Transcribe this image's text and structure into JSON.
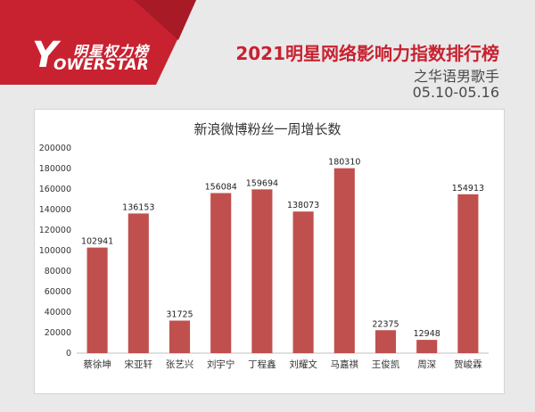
{
  "header": {
    "logo_cn": "明星权力榜",
    "logo_en": "OWERSTAR",
    "logo_letter": "Y",
    "title": "2021明星网络影响力指数排行榜",
    "subtitle": "之华语男歌手",
    "date_range": "05.10-05.16"
  },
  "colors": {
    "brand_red": "#c82230",
    "bar": "#c0504d"
  },
  "chart_data": {
    "type": "bar",
    "title": "新浪微博粉丝一周增长数",
    "categories": [
      "蔡徐坤",
      "宋亚轩",
      "张艺兴",
      "刘宇宁",
      "丁程鑫",
      "刘耀文",
      "马嘉祺",
      "王俊凯",
      "周深",
      "贺峻霖"
    ],
    "values": [
      102941,
      136153,
      31725,
      156084,
      159694,
      138073,
      180310,
      22375,
      12948,
      154913
    ],
    "value_labels": [
      "102941",
      "136153",
      "31725",
      "156084",
      "159694",
      "138073",
      "180310",
      "22375",
      "12948",
      "154913"
    ],
    "ylim": [
      0,
      200000
    ],
    "yticks": [
      0,
      20000,
      40000,
      60000,
      80000,
      100000,
      120000,
      140000,
      160000,
      180000,
      200000
    ],
    "ytick_labels": [
      "0",
      "20000",
      "40000",
      "60000",
      "80000",
      "100000",
      "120000",
      "140000",
      "160000",
      "180000",
      "200000"
    ],
    "grid": false,
    "xlabel": "",
    "ylabel": ""
  }
}
